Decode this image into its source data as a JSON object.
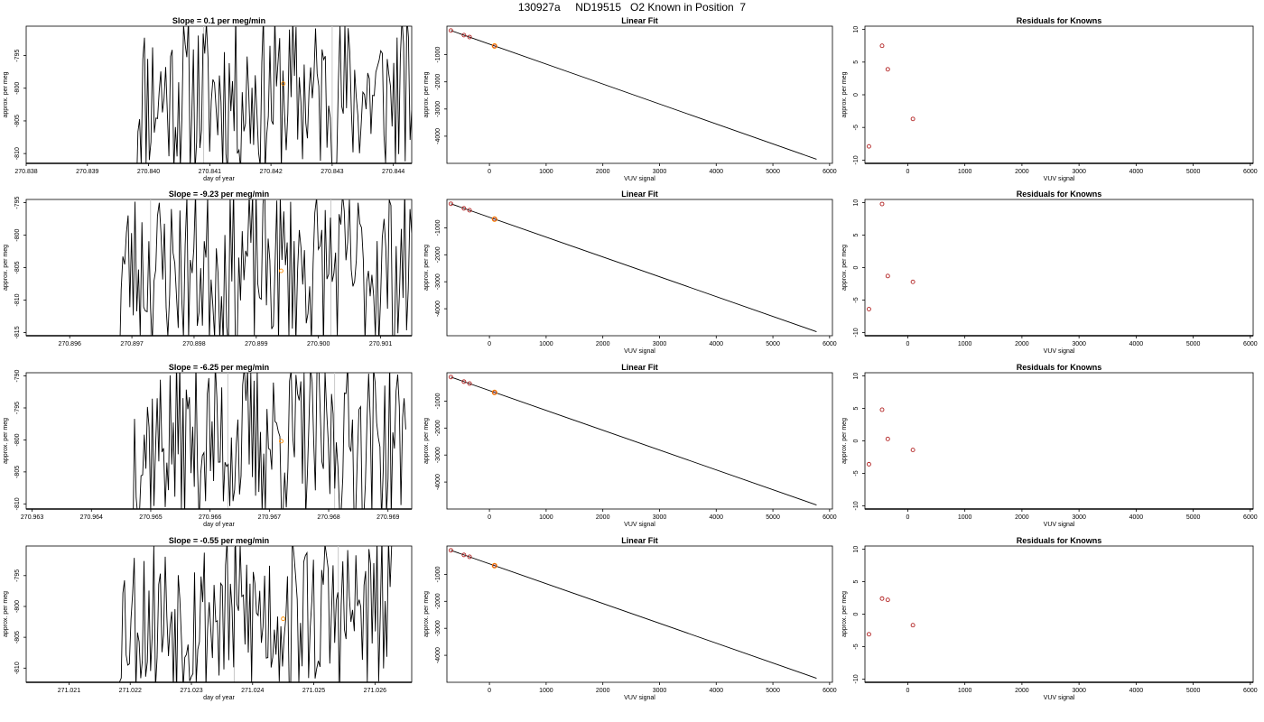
{
  "page": {
    "title": "130927a     ND19515   O2 Known in Position  7"
  },
  "colors": {
    "line": "#000000",
    "point_known": "#b22222",
    "point_sample": "#ff8c00",
    "vline": "#c8c8c8"
  },
  "chart_data": [
    {
      "type": "line",
      "panel": "timeseries",
      "title": "Slope =  0.1  per meg/min",
      "xlabel": "day of year",
      "ylabel": "approx. per meg",
      "xlim": [
        270.838,
        270.8443
      ],
      "ylim": [
        -811.5,
        -790.5
      ],
      "xticks": [
        "270.838",
        "270.839",
        "270.840",
        "270.841",
        "270.842",
        "270.843",
        "270.844"
      ],
      "yticks": [
        "-810",
        "-805",
        "-800",
        "-795"
      ],
      "vlines": [
        270.8409,
        270.843
      ],
      "marker": {
        "x": 270.8422,
        "y": -799.3
      },
      "series_start": 270.8398,
      "series_end": 270.8443,
      "series_seed": 11
    },
    {
      "type": "scatter",
      "panel": "linear_fit",
      "title": "Linear Fit",
      "xlabel": "VUV signal",
      "ylabel": "approx. per meg",
      "xlim": [
        -750,
        6050
      ],
      "ylim": [
        -5000,
        50
      ],
      "xticks": [
        "0",
        "1000",
        "2000",
        "3000",
        "4000",
        "5000",
        "6000"
      ],
      "yticks": [
        "-4000",
        "-3000",
        "-2000",
        "-1000"
      ],
      "line": {
        "x": [
          -680,
          5770
        ],
        "y": [
          -110,
          -4850
        ]
      },
      "known_points": {
        "x": [
          -680,
          -450,
          -350,
          90
        ],
        "y": [
          -110,
          -280,
          -350,
          -680
        ]
      },
      "sample_point": {
        "x": 90,
        "y": -680
      }
    },
    {
      "type": "scatter",
      "panel": "residuals",
      "title": "Residuals for Knowns",
      "xlabel": "VUV signal",
      "ylabel": "approx. per meg",
      "xlim": [
        -750,
        6050
      ],
      "ylim": [
        -10.5,
        10.5
      ],
      "xticks": [
        "0",
        "1000",
        "2000",
        "3000",
        "4000",
        "5000",
        "6000"
      ],
      "yticks": [
        "-10",
        "-5",
        "0",
        "5",
        "10"
      ],
      "x": [
        -680,
        -450,
        -350,
        90
      ],
      "y": [
        -7.9,
        7.5,
        3.9,
        -3.7
      ]
    },
    {
      "type": "line",
      "panel": "timeseries",
      "title": "Slope =  -9.23  per meg/min",
      "xlabel": "",
      "ylabel": "approx. per meg",
      "xlim": [
        270.8953,
        270.9015
      ],
      "ylim": [
        -815.5,
        -794.5
      ],
      "xticks": [
        "270.896",
        "270.897",
        "270.898",
        "270.899",
        "270.900",
        "270.901"
      ],
      "yticks": [
        "-815",
        "-810",
        "-805",
        "-800",
        "-795"
      ],
      "vlines": [
        270.8973,
        270.9002
      ],
      "marker": {
        "x": 270.8994,
        "y": -805.5
      },
      "series_start": 270.8968,
      "series_end": 270.9015,
      "series_seed": 23
    },
    {
      "type": "scatter",
      "panel": "linear_fit",
      "title": "Linear Fit",
      "xlabel": "VUV signal",
      "ylabel": "approx. per meg",
      "xlim": [
        -750,
        6050
      ],
      "ylim": [
        -5000,
        50
      ],
      "xticks": [
        "0",
        "1000",
        "2000",
        "3000",
        "4000",
        "5000",
        "6000"
      ],
      "yticks": [
        "-4000",
        "-3000",
        "-2000",
        "-1000"
      ],
      "line": {
        "x": [
          -680,
          5770
        ],
        "y": [
          -110,
          -4850
        ]
      },
      "known_points": {
        "x": [
          -680,
          -450,
          -350,
          90
        ],
        "y": [
          -110,
          -280,
          -350,
          -680
        ]
      },
      "sample_point": {
        "x": 90,
        "y": -680
      }
    },
    {
      "type": "scatter",
      "panel": "residuals",
      "title": "Residuals for Knowns",
      "xlabel": "VUV signal",
      "ylabel": "approx. per meg",
      "xlim": [
        -750,
        6050
      ],
      "ylim": [
        -10.5,
        10.5
      ],
      "xticks": [
        "0",
        "1000",
        "2000",
        "3000",
        "4000",
        "5000",
        "6000"
      ],
      "yticks": [
        "-10",
        "-5",
        "0",
        "5",
        "10"
      ],
      "x": [
        -680,
        -450,
        -350,
        90
      ],
      "y": [
        -6.4,
        9.8,
        -1.3,
        -2.2
      ]
    },
    {
      "type": "line",
      "panel": "timeseries",
      "title": "Slope =  -6.25  per meg/min",
      "xlabel": "day of year",
      "ylabel": "approx. per meg",
      "xlim": [
        270.9629,
        270.9694
      ],
      "ylim": [
        -810.8,
        -789.5
      ],
      "xticks": [
        "270.963",
        "270.964",
        "270.965",
        "270.966",
        "270.967",
        "270.968",
        "270.969"
      ],
      "yticks": [
        "-810",
        "-805",
        "-800",
        "-795",
        "-790"
      ],
      "vlines": [
        270.9663,
        270.9681
      ],
      "marker": {
        "x": 270.9672,
        "y": -800.2
      },
      "series_start": 270.9647,
      "series_end": 270.9693,
      "series_seed": 37
    },
    {
      "type": "scatter",
      "panel": "linear_fit",
      "title": "Linear Fit",
      "xlabel": "VUV signal",
      "ylabel": "approx. per meg",
      "xlim": [
        -750,
        6050
      ],
      "ylim": [
        -5000,
        50
      ],
      "xticks": [
        "0",
        "1000",
        "2000",
        "3000",
        "4000",
        "5000",
        "6000"
      ],
      "yticks": [
        "-4000",
        "-3000",
        "-2000",
        "-1000"
      ],
      "line": {
        "x": [
          -680,
          5770
        ],
        "y": [
          -110,
          -4850
        ]
      },
      "known_points": {
        "x": [
          -680,
          -450,
          -350,
          90
        ],
        "y": [
          -110,
          -280,
          -350,
          -680
        ]
      },
      "sample_point": {
        "x": 90,
        "y": -680
      }
    },
    {
      "type": "scatter",
      "panel": "residuals",
      "title": "Residuals for Knowns",
      "xlabel": "VUV signal",
      "ylabel": "approx. per meg",
      "xlim": [
        -750,
        6050
      ],
      "ylim": [
        -10.5,
        10.5
      ],
      "xticks": [
        "0",
        "1000",
        "2000",
        "3000",
        "4000",
        "5000",
        "6000"
      ],
      "yticks": [
        "-10",
        "-5",
        "0",
        "5",
        "10"
      ],
      "x": [
        -680,
        -450,
        -350,
        90
      ],
      "y": [
        -3.6,
        4.8,
        0.3,
        -1.4
      ]
    },
    {
      "type": "line",
      "panel": "timeseries",
      "title": "Slope =  -0.55  per meg/min",
      "xlabel": "day of year",
      "ylabel": "approx. per meg",
      "xlim": [
        271.0203,
        271.0266
      ],
      "ylim": [
        -812.3,
        -790.2
      ],
      "xticks": [
        "271.021",
        "271.022",
        "271.023",
        "271.024",
        "271.025",
        "271.026"
      ],
      "yticks": [
        "-810",
        "-805",
        "-800",
        "-795"
      ],
      "vlines": [
        271.0237,
        271.0254
      ],
      "marker": {
        "x": 271.0245,
        "y": -802.0
      },
      "series_start": 271.0218,
      "series_end": 271.0263,
      "series_seed": 53
    },
    {
      "type": "scatter",
      "panel": "linear_fit",
      "title": "Linear Fit",
      "xlabel": "VUV signal",
      "ylabel": "approx. per meg",
      "xlim": [
        -750,
        6050
      ],
      "ylim": [
        -5000,
        50
      ],
      "xticks": [
        "0",
        "1000",
        "2000",
        "3000",
        "4000",
        "5000",
        "6000"
      ],
      "yticks": [
        "-4000",
        "-3000",
        "-2000",
        "-1000"
      ],
      "line": {
        "x": [
          -680,
          5770
        ],
        "y": [
          -110,
          -4850
        ]
      },
      "known_points": {
        "x": [
          -680,
          -450,
          -350,
          90
        ],
        "y": [
          -110,
          -280,
          -350,
          -680
        ]
      },
      "sample_point": {
        "x": 90,
        "y": -680
      }
    },
    {
      "type": "scatter",
      "panel": "residuals",
      "title": "Residuals for Knowns",
      "xlabel": "VUV signal",
      "ylabel": "approx. per meg",
      "xlim": [
        -750,
        6050
      ],
      "ylim": [
        -10.5,
        10.5
      ],
      "xticks": [
        "0",
        "1000",
        "2000",
        "3000",
        "4000",
        "5000",
        "6000"
      ],
      "yticks": [
        "-10",
        "-5",
        "0",
        "5",
        "10"
      ],
      "x": [
        -680,
        -450,
        -350,
        90
      ],
      "y": [
        -3.1,
        2.4,
        2.2,
        -1.7
      ]
    }
  ]
}
